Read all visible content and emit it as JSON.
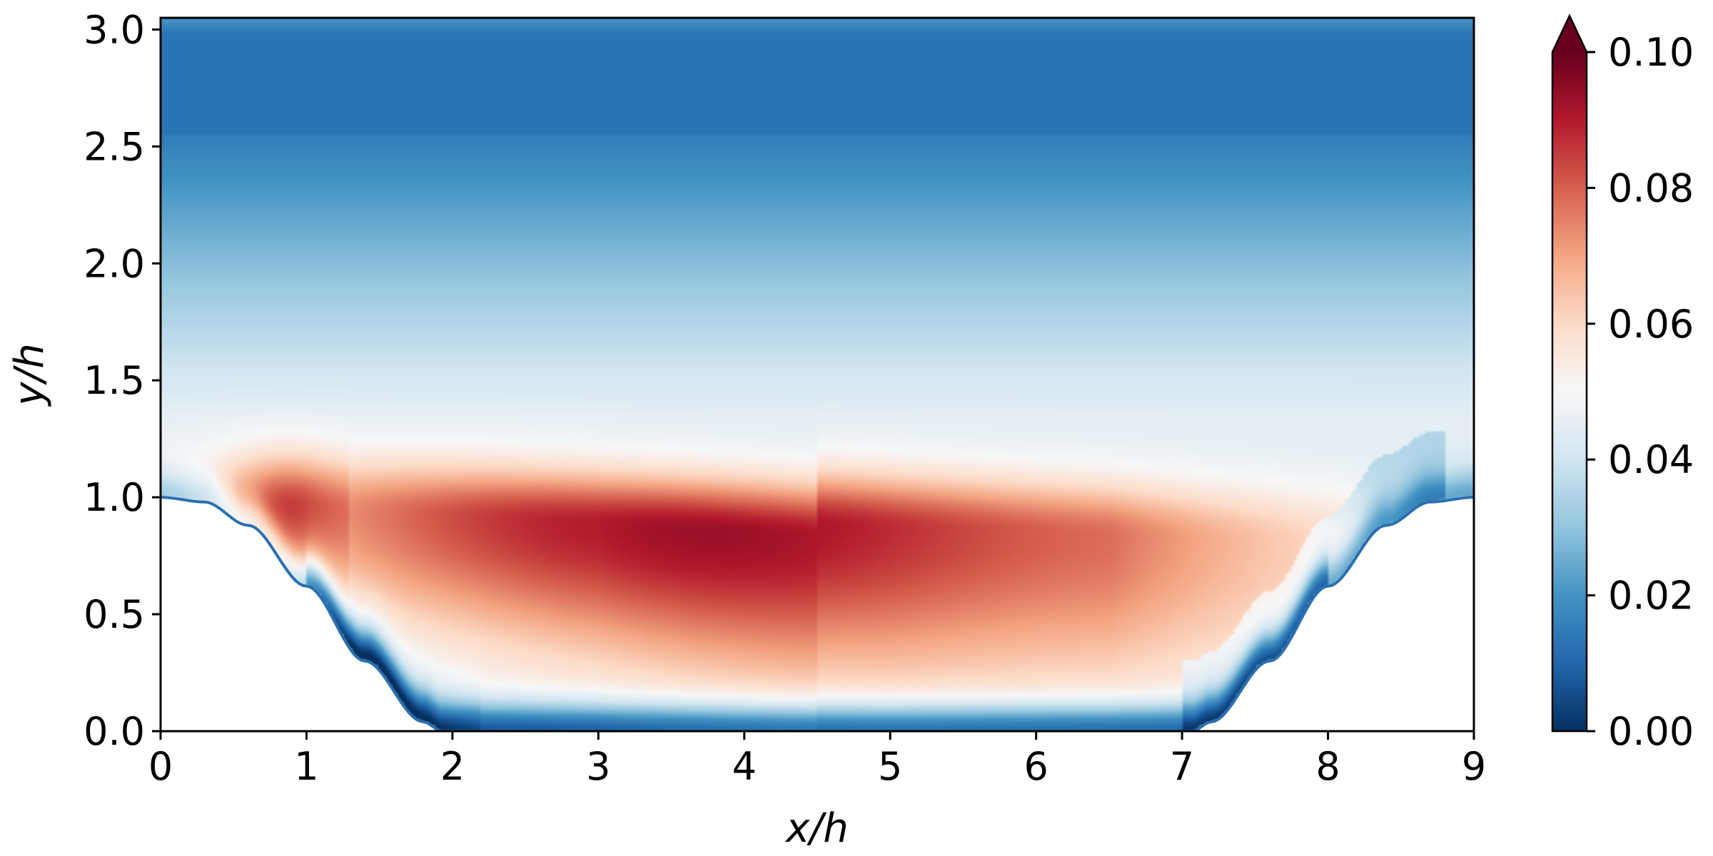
{
  "chart_data": {
    "type": "heatmap",
    "title": "",
    "xlabel": "x/h",
    "ylabel": "y/h",
    "xlim": [
      0,
      9
    ],
    "ylim": [
      0,
      3.05
    ],
    "x_ticks": [
      0,
      1,
      2,
      3,
      4,
      5,
      6,
      7,
      8,
      9
    ],
    "x_tick_labels": [
      "0",
      "1",
      "2",
      "3",
      "4",
      "5",
      "6",
      "7",
      "8",
      "9"
    ],
    "y_ticks": [
      0.0,
      0.5,
      1.0,
      1.5,
      2.0,
      2.5,
      3.0
    ],
    "y_tick_labels": [
      "0.0",
      "0.5",
      "1.0",
      "1.5",
      "2.0",
      "2.5",
      "3.0"
    ],
    "colorbar": {
      "range": [
        0,
        0.1
      ],
      "extend": "max",
      "colormap": "RdBu_r",
      "ticks": [
        0,
        0.02,
        0.04,
        0.06,
        0.08,
        0.1
      ],
      "tick_labels": [
        "0.00",
        "0.02",
        "0.04",
        "0.06",
        "0.08",
        "0.10"
      ]
    },
    "colormap_stops": [
      "#053061",
      "#2166ac",
      "#4393c3",
      "#92c5de",
      "#d1e5f0",
      "#f7f7f7",
      "#fddbc7",
      "#f4a582",
      "#d6604d",
      "#b2182b",
      "#67001f"
    ],
    "hill_profile": {
      "x": [
        0,
        0.3,
        0.6,
        1.0,
        1.4,
        1.8,
        1.93,
        7.07,
        7.2,
        7.6,
        8.0,
        8.4,
        8.7,
        9
      ],
      "y": [
        1.0,
        0.98,
        0.88,
        0.62,
        0.3,
        0.04,
        0.0,
        0.0,
        0.04,
        0.3,
        0.62,
        0.88,
        0.98,
        1.0
      ]
    },
    "grid": false
  }
}
